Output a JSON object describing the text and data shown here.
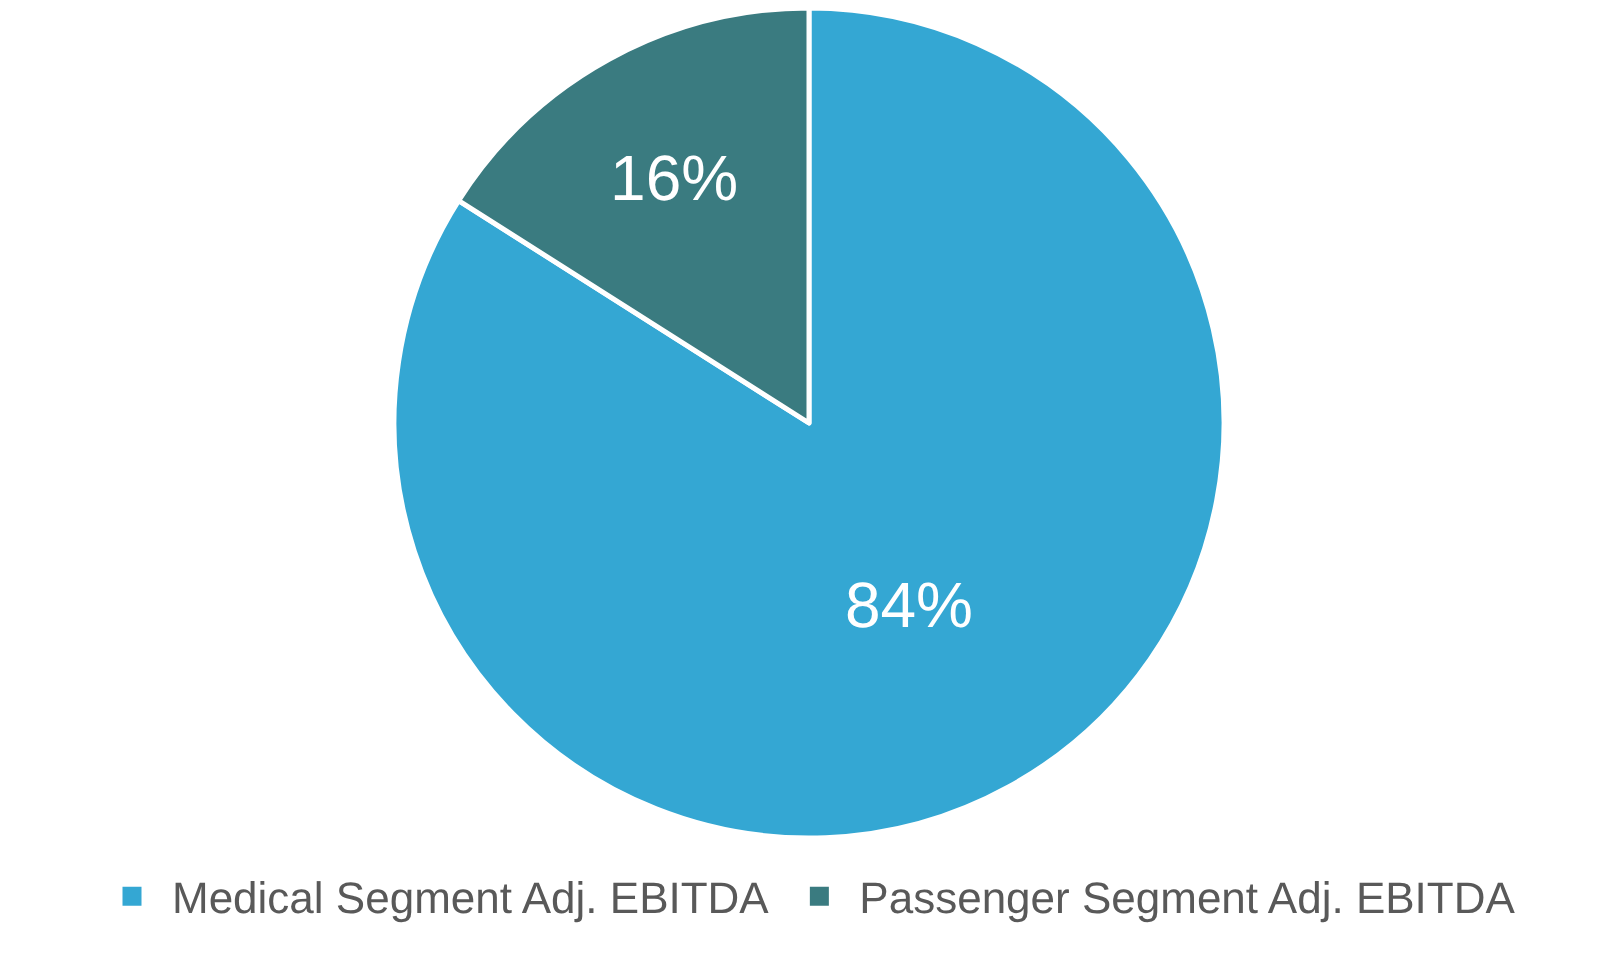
{
  "chart_data": {
    "type": "pie",
    "categories": [
      "Medical Segment Adj. EBITDA",
      "Passenger Segment Adj. EBITDA"
    ],
    "values": [
      84,
      16
    ],
    "colors": [
      "#34a7d3",
      "#3a7b80"
    ],
    "value_labels": [
      "84%",
      "16%"
    ],
    "legend": "bottom"
  }
}
